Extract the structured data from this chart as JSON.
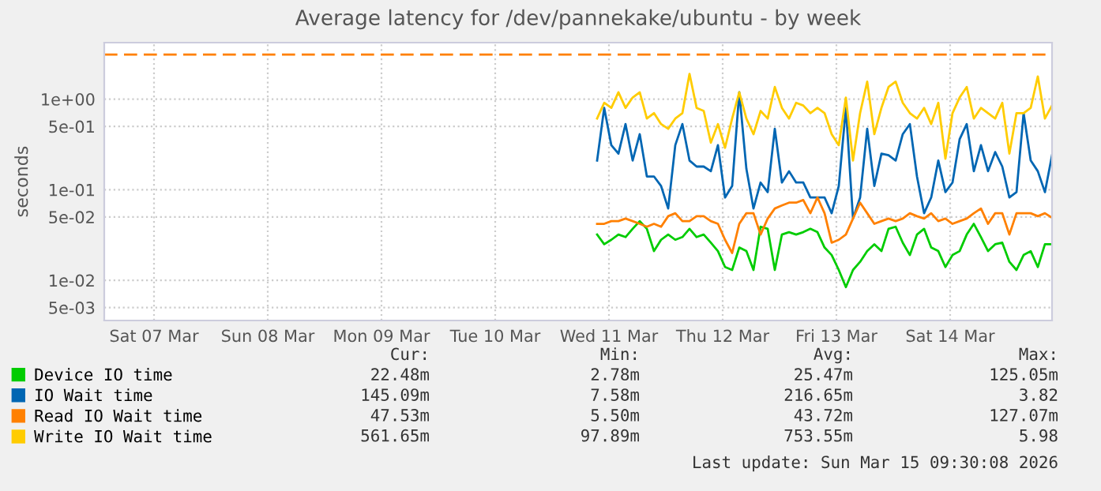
{
  "chart_data": {
    "type": "line",
    "title": "Average latency for /dev/pannekake/ubuntu - by week",
    "ylabel": "seconds",
    "x": [
      "2026-03-11T09:30",
      "2026-03-11T11:00",
      "2026-03-11T12:30",
      "2026-03-11T14:00",
      "2026-03-11T15:30",
      "2026-03-11T17:00",
      "2026-03-11T18:30",
      "2026-03-11T20:00",
      "2026-03-11T21:30",
      "2026-03-11T23:00",
      "2026-03-12T00:30",
      "2026-03-12T02:00",
      "2026-03-12T03:30",
      "2026-03-12T05:00",
      "2026-03-12T06:30",
      "2026-03-12T08:00",
      "2026-03-12T09:30",
      "2026-03-12T11:00",
      "2026-03-12T12:30",
      "2026-03-12T14:00",
      "2026-03-12T15:30",
      "2026-03-12T17:00",
      "2026-03-12T18:30",
      "2026-03-12T20:00",
      "2026-03-12T21:30",
      "2026-03-12T23:00",
      "2026-03-13T00:30",
      "2026-03-13T02:00",
      "2026-03-13T03:30",
      "2026-03-13T05:00",
      "2026-03-13T06:30",
      "2026-03-13T08:00",
      "2026-03-13T09:30",
      "2026-03-13T11:00",
      "2026-03-13T12:30",
      "2026-03-13T14:00",
      "2026-03-13T15:30",
      "2026-03-13T17:00",
      "2026-03-13T18:30",
      "2026-03-13T20:00",
      "2026-03-13T21:30",
      "2026-03-13T23:00",
      "2026-03-14T00:30",
      "2026-03-14T02:00",
      "2026-03-14T03:30",
      "2026-03-14T05:00",
      "2026-03-14T06:30",
      "2026-03-14T08:00",
      "2026-03-14T09:30",
      "2026-03-14T11:00",
      "2026-03-14T12:30",
      "2026-03-14T14:00",
      "2026-03-14T15:30",
      "2026-03-14T17:00",
      "2026-03-14T18:30",
      "2026-03-14T20:00",
      "2026-03-14T21:30",
      "2026-03-14T23:00",
      "2026-03-15T00:30",
      "2026-03-15T02:00",
      "2026-03-15T03:30",
      "2026-03-15T05:00",
      "2026-03-15T06:30",
      "2026-03-15T08:00",
      "2026-03-15T09:30"
    ],
    "series": [
      {
        "name": "Device IO time",
        "color": "#00cc00",
        "values": [
          0.032,
          0.025,
          0.028,
          0.032,
          0.03,
          0.037,
          0.045,
          0.037,
          0.021,
          0.028,
          0.032,
          0.028,
          0.03,
          0.037,
          0.03,
          0.032,
          0.026,
          0.021,
          0.014,
          0.013,
          0.023,
          0.021,
          0.013,
          0.039,
          0.037,
          0.013,
          0.032,
          0.034,
          0.032,
          0.034,
          0.037,
          0.034,
          0.023,
          0.019,
          0.013,
          0.0084,
          0.013,
          0.016,
          0.021,
          0.025,
          0.021,
          0.037,
          0.039,
          0.026,
          0.019,
          0.032,
          0.037,
          0.023,
          0.021,
          0.014,
          0.019,
          0.021,
          0.032,
          0.042,
          0.03,
          0.021,
          0.025,
          0.026,
          0.016,
          0.013,
          0.019,
          0.021,
          0.014,
          0.025,
          0.025
        ]
      },
      {
        "name": "IO Wait time",
        "color": "#0066b3",
        "values": [
          0.21,
          0.8,
          0.31,
          0.25,
          0.53,
          0.21,
          0.41,
          0.14,
          0.14,
          0.11,
          0.062,
          0.31,
          0.53,
          0.21,
          0.18,
          0.18,
          0.16,
          0.31,
          0.082,
          0.11,
          1.19,
          0.17,
          0.062,
          0.12,
          0.094,
          0.47,
          0.12,
          0.16,
          0.12,
          0.12,
          0.082,
          0.082,
          0.082,
          0.055,
          0.11,
          0.8,
          0.048,
          0.082,
          0.47,
          0.11,
          0.25,
          0.24,
          0.21,
          0.41,
          0.53,
          0.14,
          0.055,
          0.082,
          0.21,
          0.094,
          0.12,
          0.36,
          0.53,
          0.16,
          0.31,
          0.16,
          0.26,
          0.18,
          0.082,
          0.094,
          0.7,
          0.21,
          0.16,
          0.094,
          0.24
        ]
      },
      {
        "name": "Read IO Wait time",
        "color": "#ff8000",
        "values": [
          0.042,
          0.042,
          0.045,
          0.045,
          0.048,
          0.045,
          0.042,
          0.039,
          0.042,
          0.039,
          0.051,
          0.055,
          0.045,
          0.045,
          0.051,
          0.051,
          0.045,
          0.042,
          0.028,
          0.02,
          0.042,
          0.055,
          0.055,
          0.032,
          0.048,
          0.062,
          0.067,
          0.072,
          0.072,
          0.077,
          0.055,
          0.082,
          0.055,
          0.026,
          0.028,
          0.032,
          0.048,
          0.072,
          0.055,
          0.042,
          0.045,
          0.048,
          0.045,
          0.048,
          0.055,
          0.051,
          0.048,
          0.055,
          0.045,
          0.048,
          0.042,
          0.045,
          0.048,
          0.055,
          0.062,
          0.042,
          0.055,
          0.055,
          0.032,
          0.055,
          0.055,
          0.055,
          0.051,
          0.055,
          0.049
        ]
      },
      {
        "name": "Write IO Wait time",
        "color": "#ffcc00",
        "values": [
          0.61,
          0.91,
          0.8,
          1.19,
          0.8,
          1.04,
          1.19,
          0.61,
          0.7,
          0.53,
          0.47,
          0.61,
          0.7,
          1.9,
          0.8,
          0.74,
          0.33,
          0.53,
          0.29,
          0.61,
          1.19,
          0.61,
          0.41,
          0.74,
          0.61,
          1.36,
          0.8,
          0.61,
          0.91,
          0.85,
          0.7,
          0.8,
          0.7,
          0.41,
          0.31,
          1.04,
          0.21,
          0.7,
          1.56,
          0.41,
          0.8,
          1.36,
          1.56,
          0.91,
          0.7,
          0.61,
          0.8,
          0.53,
          0.91,
          0.22,
          0.7,
          1.04,
          1.36,
          0.61,
          0.8,
          0.7,
          0.61,
          0.91,
          0.25,
          0.7,
          0.7,
          0.8,
          1.78,
          0.61,
          0.85
        ]
      }
    ],
    "log": "y",
    "ylim": [
      0.0036,
      4.2
    ],
    "yticks": [
      {
        "value": 1,
        "label": "1e+00"
      },
      {
        "value": 0.5,
        "label": "5e-01"
      },
      {
        "value": 0.1,
        "label": "1e-01"
      },
      {
        "value": 0.05,
        "label": "5e-02"
      },
      {
        "value": 0.01,
        "label": "1e-02"
      },
      {
        "value": 0.005,
        "label": "5e-03"
      }
    ],
    "xlim": [
      "2026-03-07T01:30",
      "2026-03-15T09:30"
    ],
    "xticks": [
      {
        "value": "2026-03-07T12:00",
        "label": "Sat 07 Mar"
      },
      {
        "value": "2026-03-08T12:00",
        "label": "Sun 08 Mar"
      },
      {
        "value": "2026-03-09T12:00",
        "label": "Mon 09 Mar"
      },
      {
        "value": "2026-03-10T12:00",
        "label": "Tue 10 Mar"
      },
      {
        "value": "2026-03-11T12:00",
        "label": "Wed 11 Mar"
      },
      {
        "value": "2026-03-12T12:00",
        "label": "Thu 12 Mar"
      },
      {
        "value": "2026-03-13T12:00",
        "label": "Fri 13 Mar"
      },
      {
        "value": "2026-03-14T12:00",
        "label": "Sat 14 Mar"
      }
    ],
    "ref_lines": [
      {
        "axis": "y",
        "value": 3.1,
        "color": "#ff8000",
        "line_style": "dashed"
      }
    ],
    "grid": true,
    "legend": "bottom left",
    "annotations": [
      "Cur:",
      "Min:",
      "Avg:",
      "Max:",
      "22.48m",
      "2.78m",
      "25.47m",
      "125.05m",
      "145.09m",
      "7.58m",
      "216.65m",
      "3.82",
      "47.53m",
      "5.50m",
      "43.72m",
      "127.07m",
      "561.65m",
      "97.89m",
      "753.55m",
      "5.98",
      "Last update: Sun Mar 15 09:30:08 2026"
    ]
  }
}
